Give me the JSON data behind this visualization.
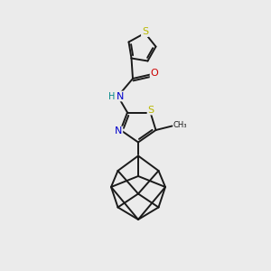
{
  "background_color": "#ebebeb",
  "bond_color": "#1a1a1a",
  "bond_width": 1.4,
  "S_color": "#b8b800",
  "N_color": "#0000cc",
  "O_color": "#cc0000",
  "H_color": "#008888",
  "figsize": [
    3.0,
    3.0
  ],
  "dpi": 100,
  "xlim": [
    0,
    10
  ],
  "ylim": [
    0,
    10
  ]
}
